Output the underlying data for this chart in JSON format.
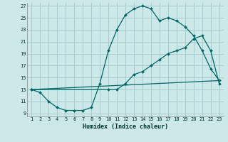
{
  "xlabel": "Humidex (Indice chaleur)",
  "bg_color": "#cce8e8",
  "grid_color": "#aacccc",
  "line_color": "#006666",
  "xlim": [
    0.5,
    23.5
  ],
  "ylim": [
    8.5,
    27.5
  ],
  "xticks": [
    1,
    2,
    3,
    4,
    5,
    6,
    7,
    8,
    9,
    10,
    11,
    12,
    13,
    14,
    15,
    16,
    17,
    18,
    19,
    20,
    21,
    22,
    23
  ],
  "yticks": [
    9,
    11,
    13,
    15,
    17,
    19,
    21,
    23,
    25,
    27
  ],
  "line1_x": [
    1,
    23
  ],
  "line1_y": [
    13,
    14.5
  ],
  "line2_x": [
    1,
    2,
    3,
    4,
    5,
    6,
    7,
    8,
    9,
    10,
    11,
    12,
    13,
    14,
    15,
    16,
    17,
    18,
    19,
    20,
    21,
    22,
    23
  ],
  "line2_y": [
    13,
    12.5,
    11,
    10,
    9.5,
    9.5,
    9.5,
    10,
    14,
    19.5,
    23,
    25.5,
    26.5,
    27,
    26.5,
    24.5,
    25,
    24.5,
    23.5,
    22,
    19.5,
    16.5,
    14.5
  ],
  "line3_x": [
    1,
    10,
    11,
    12,
    13,
    14,
    15,
    16,
    17,
    18,
    19,
    20,
    21,
    22,
    23
  ],
  "line3_y": [
    13,
    13,
    13,
    14,
    15.5,
    16,
    17,
    18,
    19,
    19.5,
    20,
    21.5,
    22,
    19.5,
    14
  ]
}
